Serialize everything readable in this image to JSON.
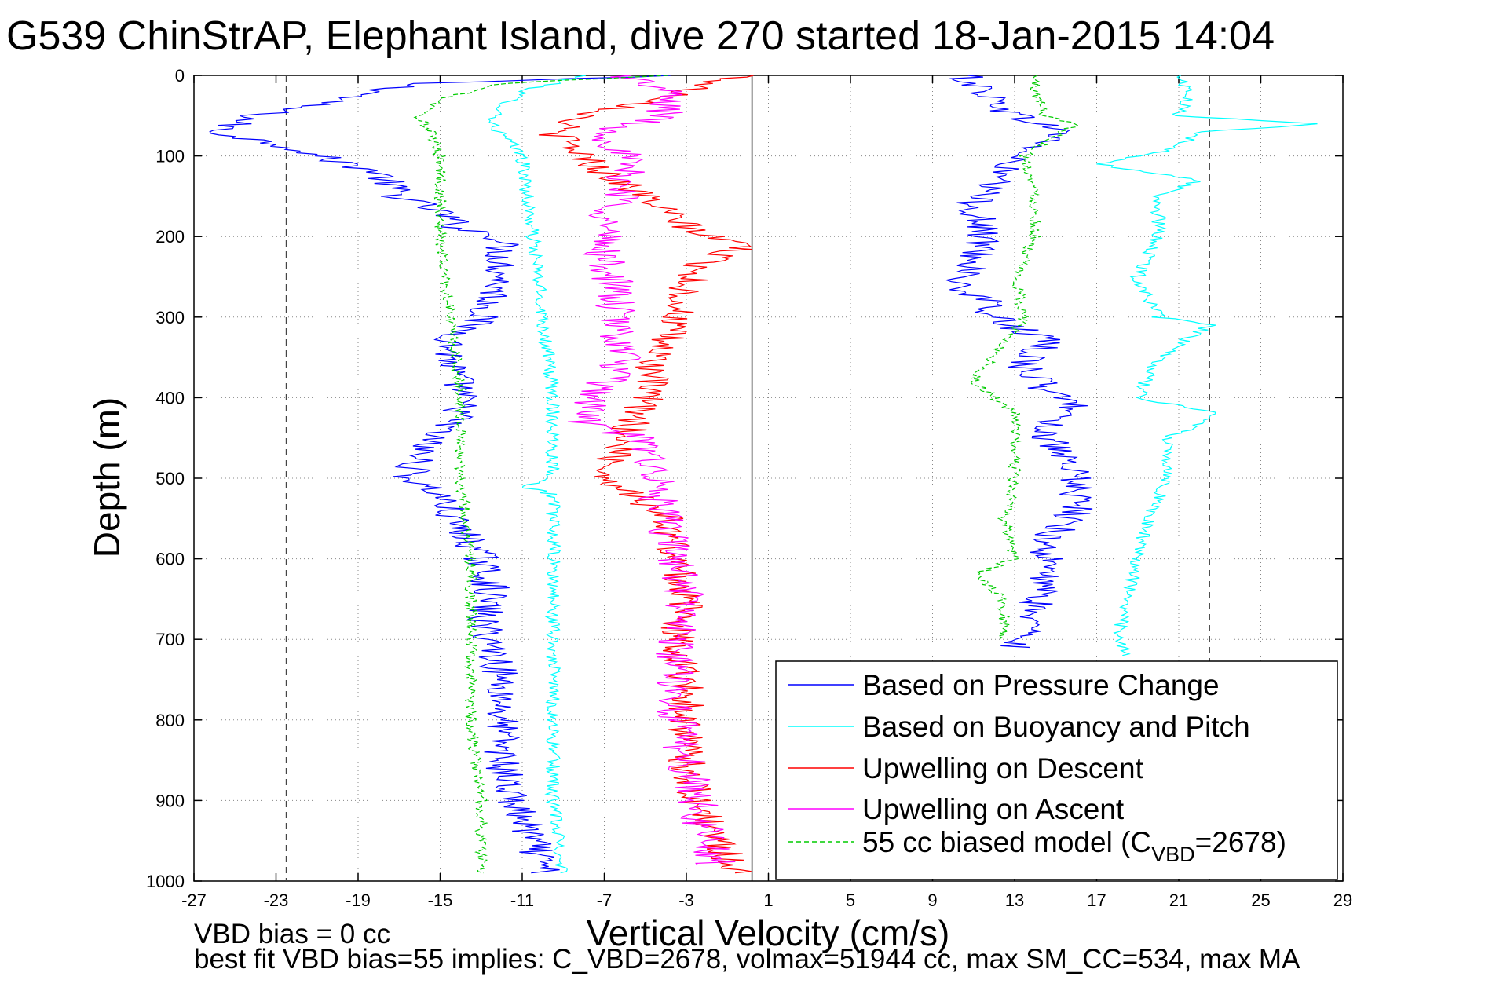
{
  "chart_data": {
    "type": "line",
    "title": "G539 ChinStrAP, Elephant Island, dive 270 started 18-Jan-2015 14:04",
    "xlabel": "Vertical Velocity (cm/s)",
    "ylabel": "Depth (m)",
    "xlim": [
      -27,
      29
    ],
    "ylim": [
      0,
      1000
    ],
    "y_reversed": true,
    "grid": true,
    "legend_position": "bottom-right",
    "x_ticks": [
      -27,
      -23,
      -19,
      -15,
      -11,
      -7,
      -3,
      1,
      5,
      9,
      13,
      17,
      21,
      25,
      29
    ],
    "y_ticks": [
      0,
      100,
      200,
      300,
      400,
      500,
      600,
      700,
      800,
      900,
      1000
    ],
    "reference_lines": [
      {
        "type": "solid",
        "x": 0.2
      },
      {
        "type": "dashed",
        "x": -22.5
      },
      {
        "type": "dashed",
        "x": 22.5
      }
    ],
    "series": [
      {
        "name": "Based on Pressure Change",
        "color": "#0000ff",
        "style": "solid",
        "segments": [
          {
            "depth": [
              0,
              10,
              30,
              50,
              70,
              90,
              100,
              120,
              150,
              170,
              190,
              200,
              220,
              250,
              280,
              300,
              330,
              360,
              390,
              420,
              450,
              470,
              500,
              520,
              550,
              580,
              600,
              640,
              680,
              700,
              750,
              800,
              850,
              900,
              950,
              990
            ],
            "velocity": [
              -4,
              -16,
              -20,
              -24,
              -26,
              -22,
              -21,
              -18,
              -17,
              -15,
              -14,
              -12,
              -12,
              -12,
              -12.5,
              -13,
              -14.5,
              -14.5,
              -14,
              -14,
              -15.5,
              -16,
              -16.5,
              -15,
              -14.5,
              -13.5,
              -13,
              -12.5,
              -13,
              -12.5,
              -12,
              -12,
              -12,
              -11.5,
              -10.5,
              -10
            ]
          },
          {
            "depth": [
              0,
              20,
              50,
              70,
              100,
              130,
              160,
              200,
              240,
              260,
              280,
              300,
              330,
              360,
              390,
              410,
              440,
              470,
              500,
              540,
              580,
              620,
              660,
              700,
              710
            ],
            "velocity": [
              10.5,
              11.5,
              13,
              15.5,
              13,
              12,
              11,
              11.5,
              11,
              10,
              11.5,
              12,
              14.5,
              13.5,
              14.5,
              16,
              14.5,
              15,
              16,
              16,
              14.5,
              14.5,
              14,
              13.5,
              13
            ]
          }
        ]
      },
      {
        "name": "Based on Buoyancy and Pitch",
        "color": "#00ffff",
        "style": "solid",
        "segments": [
          {
            "depth": [
              0,
              20,
              40,
              60,
              100,
              200,
              300,
              400,
              500,
              510,
              520,
              600,
              700,
              800,
              900,
              990
            ],
            "velocity": [
              -8,
              -11,
              -12,
              -12.5,
              -11,
              -10.5,
              -10,
              -9.5,
              -9.5,
              -11,
              -9.5,
              -9.5,
              -9.5,
              -9.5,
              -9.5,
              -9
            ]
          },
          {
            "depth": [
              0,
              20,
              50,
              60,
              70,
              90,
              100,
              110,
              130,
              150,
              200,
              250,
              300,
              310,
              350,
              400,
              420,
              450,
              500,
              550,
              600,
              700,
              720
            ],
            "velocity": [
              21,
              21.5,
              21,
              28,
              22,
              21,
              19,
              17,
              22,
              20,
              20,
              19,
              20,
              22.5,
              20,
              19,
              23,
              20.5,
              20.5,
              19.5,
              19,
              18,
              18.5
            ]
          }
        ]
      },
      {
        "name": "Upwelling on Descent",
        "color": "#ff0000",
        "style": "solid",
        "segments": [
          {
            "depth": [
              0,
              10,
              20,
              30,
              50,
              70,
              90,
              120,
              150,
              180,
              200,
              210,
              230,
              260,
              300,
              350,
              400,
              450,
              500,
              520,
              550,
              600,
              650,
              700,
              750,
              800,
              850,
              900,
              950,
              990
            ],
            "velocity": [
              0,
              -2,
              -3,
              -4,
              -8,
              -9.5,
              -8.5,
              -7,
              -5,
              -3.5,
              -2,
              0,
              -2,
              -3,
              -3.5,
              -4.5,
              -5,
              -6,
              -7,
              -5.5,
              -4,
              -3.5,
              -3,
              -3.5,
              -3,
              -3,
              -3,
              -2.5,
              -1.5,
              -0.5
            ]
          }
        ]
      },
      {
        "name": "Upwelling on Ascent",
        "color": "#ff00ff",
        "style": "solid",
        "segments": [
          {
            "depth": [
              0,
              20,
              50,
              70,
              100,
              150,
              180,
              200,
              230,
              260,
              300,
              350,
              400,
              430,
              450,
              480,
              520,
              560,
              600,
              650,
              700,
              750,
              800,
              850,
              900,
              950,
              980
            ],
            "velocity": [
              -6,
              -4,
              -4,
              -7,
              -6,
              -6,
              -7,
              -7,
              -7,
              -6.5,
              -6.5,
              -6,
              -7.5,
              -8,
              -5.5,
              -4.5,
              -4.5,
              -4,
              -3.5,
              -3,
              -3.5,
              -3.5,
              -3.5,
              -3,
              -2.5,
              -2,
              -1.5
            ]
          }
        ]
      },
      {
        "name": "55 cc biased model (C_VBD=2678)",
        "color": "#00cc00",
        "style": "dashed",
        "segments": [
          {
            "depth": [
              0,
              10,
              30,
              50,
              70,
              100,
              150,
              200,
              300,
              400,
              500,
              600,
              700,
              800,
              900,
              990
            ],
            "velocity": [
              -4,
              -12,
              -15,
              -16,
              -15.5,
              -15,
              -15,
              -15,
              -14.5,
              -14,
              -14,
              -13.5,
              -13.5,
              -13.5,
              -13,
              -13
            ]
          },
          {
            "depth": [
              0,
              20,
              50,
              60,
              100,
              150,
              200,
              250,
              300,
              380,
              420,
              500,
              550,
              600,
              620,
              650,
              700
            ],
            "velocity": [
              14,
              14,
              14.5,
              16,
              13.5,
              14,
              14,
              13,
              13.5,
              11,
              13,
              13,
              12.5,
              13,
              11,
              12.5,
              12.5
            ]
          }
        ]
      }
    ],
    "legend": [
      {
        "label": "Based on Pressure Change",
        "color": "#0000ff",
        "style": "solid"
      },
      {
        "label": "Based on Buoyancy and Pitch",
        "color": "#00ffff",
        "style": "solid"
      },
      {
        "label": "Upwelling on Descent",
        "color": "#ff0000",
        "style": "solid"
      },
      {
        "label": "Upwelling on Ascent",
        "color": "#ff00ff",
        "style": "solid"
      },
      {
        "label": "55 cc biased model (C",
        "sub": "VBD",
        "tail": "=2678)",
        "color": "#00cc00",
        "style": "dashed"
      }
    ],
    "footer": [
      "VBD bias = 0 cc",
      "best fit VBD bias=55 implies: C_VBD=2678, volmax=51944 cc, max SM_CC=534, max MA"
    ]
  }
}
